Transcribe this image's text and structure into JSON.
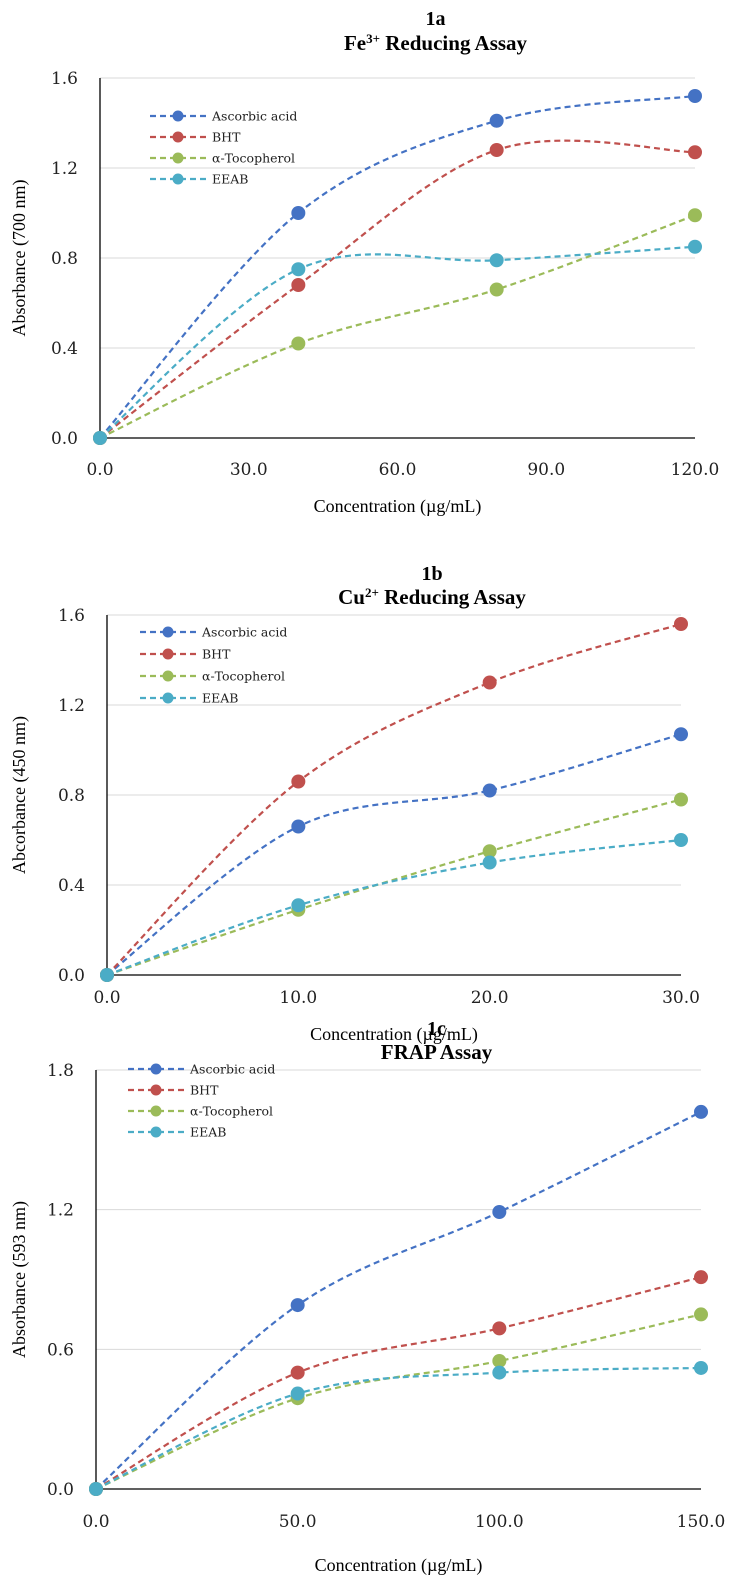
{
  "chart_data": [
    {
      "type": "line",
      "panel": "1a",
      "title": "Fe³⁺ Reducing Assay",
      "title_base": "Fe",
      "title_sup": "3+",
      "title_rest": " Reducing Assay",
      "xlabel": "Concentration (µg/mL)",
      "ylabel": "Absorbance  (700 nm)",
      "xlim": [
        0,
        120
      ],
      "ylim": [
        0,
        1.6
      ],
      "x_ticks": [
        "0.0",
        "30.0",
        "60.0",
        "90.0",
        "120.0"
      ],
      "x_tick_values": [
        0,
        30,
        60,
        90,
        120
      ],
      "y_ticks": [
        "0.0",
        "0.4",
        "0.8",
        "1.2",
        "1.6"
      ],
      "y_tick_values": [
        0,
        0.4,
        0.8,
        1.2,
        1.6
      ],
      "grid": true,
      "legend_position": "top-left",
      "x": [
        0,
        40,
        80,
        120
      ],
      "series": [
        {
          "name": "Ascorbic acid",
          "color": "#4472C4",
          "values": [
            0.0,
            1.0,
            1.41,
            1.52
          ]
        },
        {
          "name": "BHT",
          "color": "#C0504D",
          "values": [
            0.0,
            0.68,
            1.28,
            1.27
          ]
        },
        {
          "name": "α-Tocopherol",
          "color": "#9BBB59",
          "values": [
            0.0,
            0.42,
            0.66,
            0.99
          ]
        },
        {
          "name": "EEAB",
          "color": "#4BACC6",
          "values": [
            0.0,
            0.75,
            0.79,
            0.85
          ]
        }
      ]
    },
    {
      "type": "line",
      "panel": "1b",
      "title": "Cu²⁺ Reducing Assay",
      "title_base": "Cu",
      "title_sup": "2+",
      "title_rest": " Reducing Assay",
      "xlabel": "Concentration (µg/mL)",
      "ylabel": "Abcorbance (450 nm)",
      "xlim": [
        0,
        30
      ],
      "ylim": [
        0,
        1.6
      ],
      "x_ticks": [
        "0.0",
        "10.0",
        "20.0",
        "30.0"
      ],
      "x_tick_values": [
        0,
        10,
        20,
        30
      ],
      "y_ticks": [
        "0.0",
        "0.4",
        "0.8",
        "1.2",
        "1.6"
      ],
      "y_tick_values": [
        0,
        0.4,
        0.8,
        1.2,
        1.6
      ],
      "grid": true,
      "legend_position": "top-left",
      "x": [
        0,
        10,
        20,
        30
      ],
      "series": [
        {
          "name": "Ascorbic acid",
          "color": "#4472C4",
          "values": [
            0.0,
            0.66,
            0.82,
            1.07
          ]
        },
        {
          "name": "BHT",
          "color": "#C0504D",
          "values": [
            0.0,
            0.86,
            1.3,
            1.56
          ]
        },
        {
          "name": "α-Tocopherol",
          "color": "#9BBB59",
          "values": [
            0.0,
            0.29,
            0.55,
            0.78
          ]
        },
        {
          "name": "EEAB",
          "color": "#4BACC6",
          "values": [
            0.0,
            0.31,
            0.5,
            0.6
          ]
        }
      ]
    },
    {
      "type": "line",
      "panel": "1c",
      "title": "FRAP Assay",
      "title_base": "FRAP Assay",
      "title_sup": "",
      "title_rest": "",
      "xlabel": "Concentration (µg/mL)",
      "ylabel": "Absorbance (593 nm)",
      "xlim": [
        0,
        150
      ],
      "ylim": [
        0,
        1.8
      ],
      "x_ticks": [
        "0.0",
        "50.0",
        "100.0",
        "150.0"
      ],
      "x_tick_values": [
        0,
        50,
        100,
        150
      ],
      "y_ticks": [
        "0.0",
        "0.6",
        "1.2",
        "1.8"
      ],
      "y_tick_values": [
        0,
        0.6,
        1.2,
        1.8
      ],
      "grid": true,
      "legend_position": "top-left",
      "x": [
        0,
        50,
        100,
        150
      ],
      "series": [
        {
          "name": "Ascorbic acid",
          "color": "#4472C4",
          "values": [
            0.0,
            0.79,
            1.19,
            1.62
          ]
        },
        {
          "name": "BHT",
          "color": "#C0504D",
          "values": [
            0.0,
            0.5,
            0.69,
            0.91
          ]
        },
        {
          "name": "α-Tocopherol",
          "color": "#9BBB59",
          "values": [
            0.0,
            0.39,
            0.55,
            0.75
          ]
        },
        {
          "name": "EEAB",
          "color": "#4BACC6",
          "values": [
            0.0,
            0.41,
            0.5,
            0.52
          ]
        }
      ]
    }
  ]
}
